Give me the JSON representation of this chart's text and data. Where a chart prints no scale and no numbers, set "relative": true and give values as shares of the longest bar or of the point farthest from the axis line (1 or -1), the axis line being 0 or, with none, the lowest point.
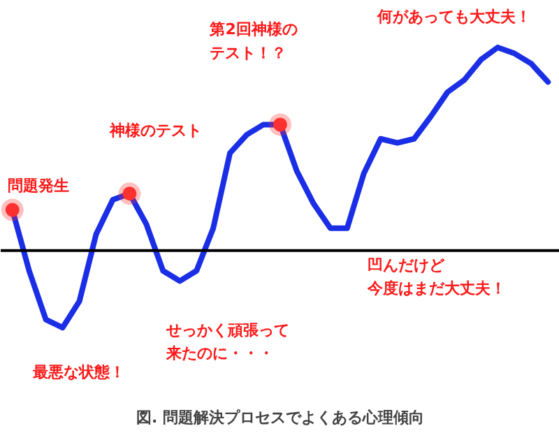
{
  "chart_data": {
    "type": "line",
    "relative": true,
    "title": "図. 問題解決プロセスでよくある心理傾向",
    "categories": [
      null,
      null,
      null,
      null,
      null,
      null,
      null,
      null,
      null,
      null,
      null,
      null,
      null,
      null,
      null,
      null,
      null,
      null,
      null,
      null,
      null,
      null,
      null,
      null,
      null,
      null,
      null,
      null,
      null,
      null,
      null,
      null,
      null
    ],
    "series": [
      {
        "color": "#1a2ee6",
        "line_style": "solid",
        "marker": "none",
        "values": [
          0.2,
          -0.1,
          -0.34,
          -0.38,
          -0.25,
          0.08,
          0.25,
          0.28,
          0.13,
          -0.1,
          -0.15,
          -0.1,
          0.11,
          0.48,
          0.57,
          0.62,
          0.62,
          0.39,
          0.23,
          0.11,
          0.11,
          0.38,
          0.55,
          0.53,
          0.55,
          0.66,
          0.78,
          0.84,
          0.94,
          1.0,
          0.97,
          0.92,
          0.83
        ]
      }
    ],
    "annotations": [
      "問題発生",
      "神様のテスト",
      "第2回神様のテスト！？",
      "何があっても大丈夫！",
      "凹んだけど今度はまだ大丈夫！",
      "せっかく頑張って来たのに・・・",
      "最悪な状態！"
    ],
    "grid": false
  }
}
